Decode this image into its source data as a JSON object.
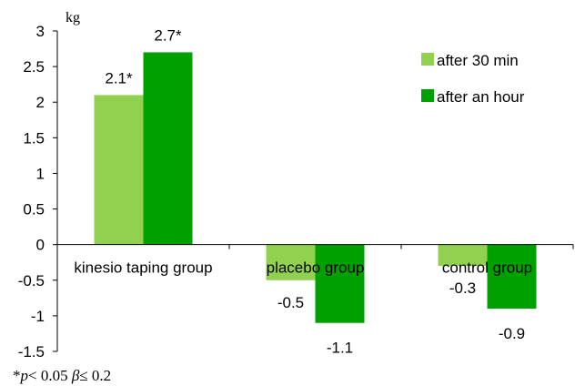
{
  "chart_data": {
    "type": "bar",
    "categories": [
      "kinesio taping group",
      "placebo group",
      "control group"
    ],
    "series": [
      {
        "name": "after 30 min",
        "values": [
          2.1,
          -0.5,
          -0.3
        ],
        "labels": [
          "2.1*",
          "-0.5",
          "-0.3"
        ],
        "color": "#92d050"
      },
      {
        "name": "after an hour",
        "values": [
          2.7,
          -1.1,
          -0.9
        ],
        "labels": [
          "2.7*",
          "-1.1",
          "-0.9"
        ],
        "color": "#00a000"
      }
    ],
    "ylim": [
      -1.5,
      3
    ],
    "yticks": [
      "3",
      "2.5",
      "2",
      "1.5",
      "1",
      "0.5",
      "0",
      "-0.5",
      "-1",
      "-1.5"
    ],
    "ytick_values": [
      3,
      2.5,
      2,
      1.5,
      1,
      0.5,
      0,
      -0.5,
      -1,
      -1.5
    ],
    "ylabel": "kg",
    "xlabel": "",
    "title": "",
    "grid": false,
    "legend_position": "top-right"
  },
  "footnote": {
    "star": "*",
    "p": "p",
    "p_rest": "< 0.05 ",
    "beta": "β",
    "beta_rest": "≤ 0.2"
  }
}
